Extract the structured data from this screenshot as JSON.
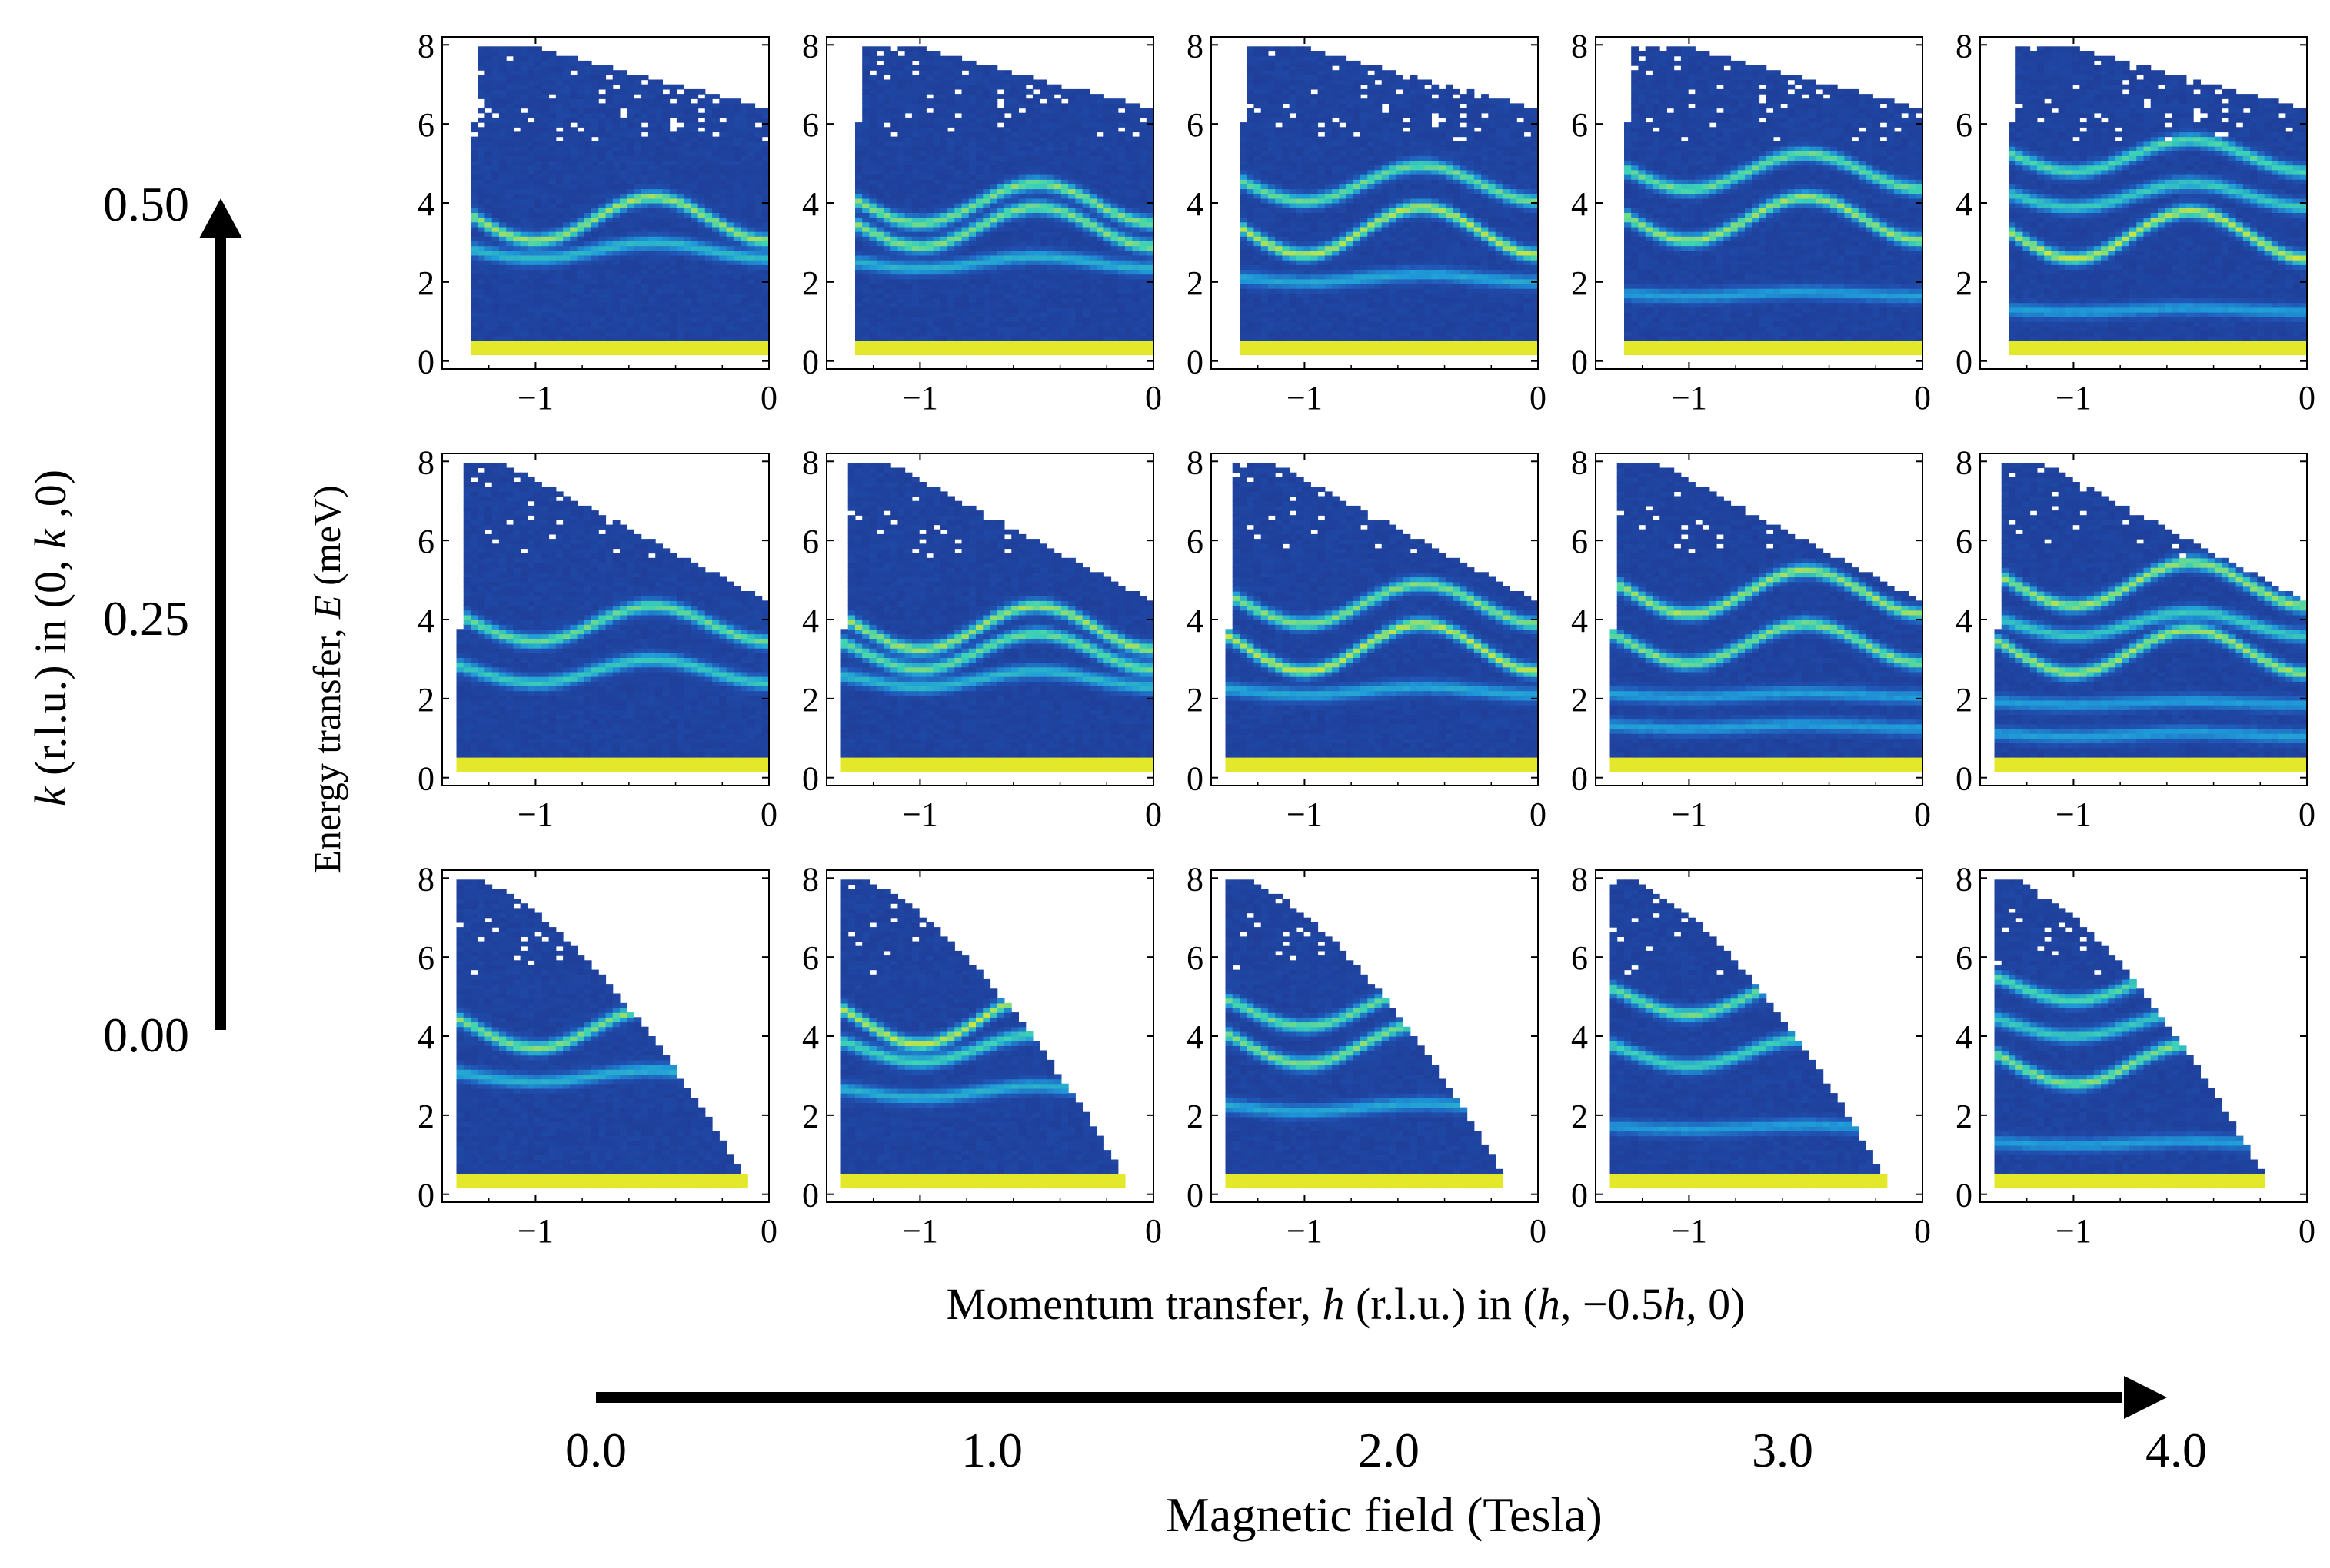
{
  "chart_data": {
    "type": "heatmap",
    "title": "",
    "colormap": [
      "#1d2e86",
      "#2158b8",
      "#1f9bd9",
      "#3ed3b4",
      "#f2ea1f"
    ],
    "panel_xlim": [
      -1.4,
      0.0
    ],
    "panel_ylim": [
      -0.2,
      8.2
    ],
    "panel_xticks": [
      "−1",
      "0"
    ],
    "panel_yticks": [
      "0",
      "2",
      "4",
      "6",
      "8"
    ],
    "xlabel": {
      "pre": "Momentum transfer, ",
      "var": "h",
      "mid": " (r.l.u.) in (",
      "var2": "h",
      "post": ", −0.5",
      "var3": "h",
      "tail": ", 0)"
    },
    "ylabel": {
      "pre": "Energy transfer, ",
      "var": "E",
      "post": " (meV)"
    },
    "field_axis": {
      "label": "Magnetic field (Tesla)",
      "values": [
        "0.0",
        "1.0",
        "2.0",
        "3.0",
        "4.0"
      ]
    },
    "k_axis": {
      "label_var": "k",
      "label_mid": " (r.l.u.) in (0, ",
      "label_var2": "k",
      "label_post": " ,0)",
      "values": [
        "0.50",
        "0.25",
        "0.00"
      ]
    },
    "panels": [
      {
        "row": 0,
        "col": 0,
        "k": 0.5,
        "field_T": 0.0,
        "modes": [
          {
            "base": 3.6,
            "amp": 0.55,
            "w": 0.55
          },
          {
            "base": 2.8,
            "amp": 0.2,
            "w": 0.35
          }
        ]
      },
      {
        "row": 0,
        "col": 1,
        "k": 0.5,
        "field_T": 1.0,
        "modes": [
          {
            "base": 4.0,
            "amp": 0.5,
            "w": 0.35
          },
          {
            "base": 3.4,
            "amp": 0.5,
            "w": 0.5
          },
          {
            "base": 2.5,
            "amp": 0.15,
            "w": 0.35
          }
        ]
      },
      {
        "row": 0,
        "col": 2,
        "k": 0.5,
        "field_T": 2.0,
        "modes": [
          {
            "base": 4.5,
            "amp": 0.45,
            "w": 0.35
          },
          {
            "base": 3.3,
            "amp": 0.6,
            "w": 0.55
          },
          {
            "base": 2.1,
            "amp": 0.1,
            "w": 0.3
          }
        ]
      },
      {
        "row": 0,
        "col": 3,
        "k": 0.5,
        "field_T": 3.0,
        "modes": [
          {
            "base": 4.8,
            "amp": 0.45,
            "w": 0.35
          },
          {
            "base": 3.6,
            "amp": 0.55,
            "w": 0.45
          },
          {
            "base": 1.7,
            "amp": 0.05,
            "w": 0.3
          }
        ]
      },
      {
        "row": 0,
        "col": 4,
        "k": 0.5,
        "field_T": 4.0,
        "modes": [
          {
            "base": 5.2,
            "amp": 0.4,
            "w": 0.3
          },
          {
            "base": 4.2,
            "amp": 0.3,
            "w": 0.35
          },
          {
            "base": 3.2,
            "amp": 0.6,
            "w": 0.45
          },
          {
            "base": 1.3,
            "amp": 0.05,
            "w": 0.3
          }
        ]
      },
      {
        "row": 1,
        "col": 0,
        "k": 0.25,
        "field_T": 0.0,
        "modes": [
          {
            "base": 3.9,
            "amp": 0.45,
            "w": 0.6
          },
          {
            "base": 2.7,
            "amp": 0.3,
            "w": 0.45
          }
        ]
      },
      {
        "row": 1,
        "col": 1,
        "k": 0.25,
        "field_T": 1.0,
        "modes": [
          {
            "base": 3.8,
            "amp": 0.55,
            "w": 0.4
          },
          {
            "base": 3.2,
            "amp": 0.45,
            "w": 0.4
          },
          {
            "base": 2.5,
            "amp": 0.2,
            "w": 0.35
          }
        ]
      },
      {
        "row": 1,
        "col": 2,
        "k": 0.25,
        "field_T": 2.0,
        "modes": [
          {
            "base": 4.4,
            "amp": 0.5,
            "w": 0.35
          },
          {
            "base": 3.3,
            "amp": 0.6,
            "w": 0.55
          },
          {
            "base": 2.2,
            "amp": 0.1,
            "w": 0.3
          }
        ]
      },
      {
        "row": 1,
        "col": 3,
        "k": 0.25,
        "field_T": 3.0,
        "modes": [
          {
            "base": 4.7,
            "amp": 0.55,
            "w": 0.35
          },
          {
            "base": 3.4,
            "amp": 0.5,
            "w": 0.45
          },
          {
            "base": 2.1,
            "amp": 0.05,
            "w": 0.3
          },
          {
            "base": 1.3,
            "amp": 0.05,
            "w": 0.3
          }
        ]
      },
      {
        "row": 1,
        "col": 4,
        "k": 0.25,
        "field_T": 4.0,
        "modes": [
          {
            "base": 4.9,
            "amp": 0.55,
            "w": 0.35
          },
          {
            "base": 3.9,
            "amp": 0.3,
            "w": 0.3
          },
          {
            "base": 3.2,
            "amp": 0.55,
            "w": 0.45
          },
          {
            "base": 1.9,
            "amp": 0.05,
            "w": 0.3
          },
          {
            "base": 1.1,
            "amp": 0.05,
            "w": 0.3
          }
        ]
      },
      {
        "row": 2,
        "col": 0,
        "k": 0.0,
        "field_T": 0.0,
        "modes": [
          {
            "base": 4.2,
            "amp": 0.5,
            "w": 0.55
          },
          {
            "base": 3.0,
            "amp": 0.15,
            "w": 0.45
          }
        ]
      },
      {
        "row": 2,
        "col": 1,
        "k": 0.0,
        "field_T": 1.0,
        "modes": [
          {
            "base": 4.4,
            "amp": 0.6,
            "w": 0.4
          },
          {
            "base": 3.7,
            "amp": 0.35,
            "w": 0.4
          },
          {
            "base": 2.6,
            "amp": 0.15,
            "w": 0.35
          }
        ]
      },
      {
        "row": 2,
        "col": 2,
        "k": 0.0,
        "field_T": 2.0,
        "modes": [
          {
            "base": 4.7,
            "amp": 0.45,
            "w": 0.35
          },
          {
            "base": 3.8,
            "amp": 0.5,
            "w": 0.45
          },
          {
            "base": 2.2,
            "amp": 0.1,
            "w": 0.3
          }
        ]
      },
      {
        "row": 2,
        "col": 3,
        "k": 0.0,
        "field_T": 3.0,
        "modes": [
          {
            "base": 5.0,
            "amp": 0.45,
            "w": 0.35
          },
          {
            "base": 3.6,
            "amp": 0.35,
            "w": 0.4
          },
          {
            "base": 1.7,
            "amp": 0.05,
            "w": 0.3
          }
        ]
      },
      {
        "row": 2,
        "col": 4,
        "k": 0.0,
        "field_T": 4.0,
        "modes": [
          {
            "base": 5.3,
            "amp": 0.4,
            "w": 0.3
          },
          {
            "base": 4.3,
            "amp": 0.3,
            "w": 0.3
          },
          {
            "base": 3.3,
            "amp": 0.5,
            "w": 0.4
          },
          {
            "base": 1.3,
            "amp": 0.05,
            "w": 0.3
          }
        ]
      }
    ]
  }
}
